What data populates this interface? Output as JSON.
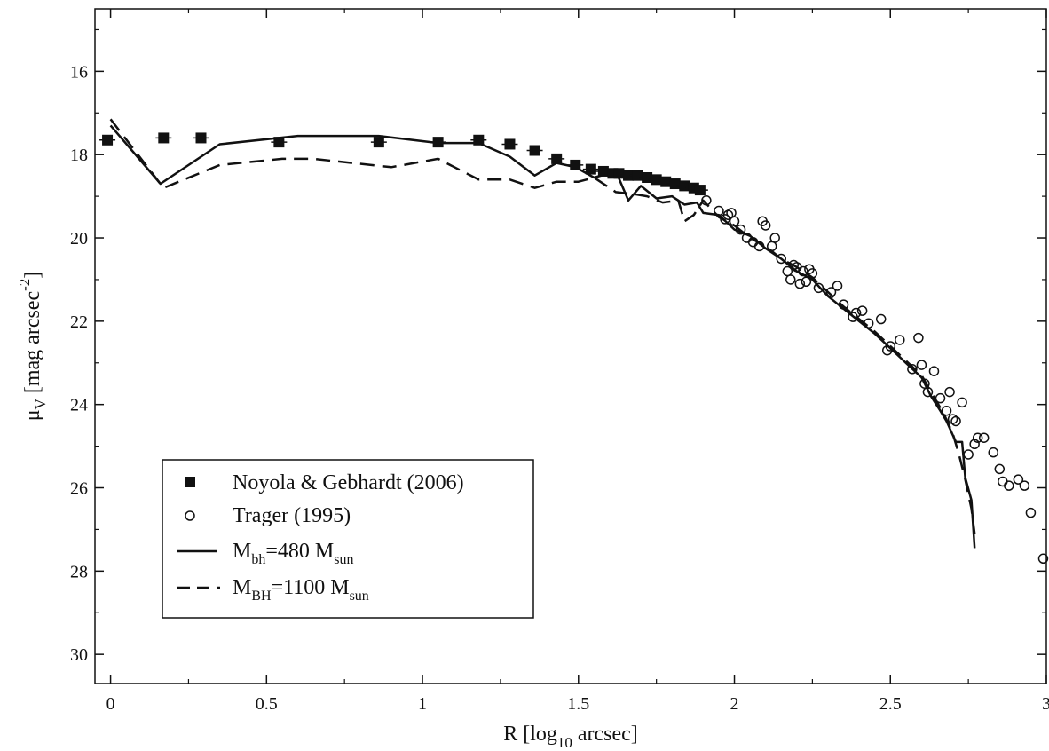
{
  "chart_data": {
    "type": "scatter",
    "title": "",
    "xlabel": {
      "main": "R [log",
      "sub": "10",
      "tail": " arcsec]"
    },
    "ylabel": {
      "mu": "μ",
      "sub": "V",
      "text": " [mag arcsec",
      "sup": "-2",
      "close": "]"
    },
    "xlim": [
      -0.05,
      3.0
    ],
    "ylim": [
      30.7,
      14.5
    ],
    "y_inverted": true,
    "x_ticks": [
      {
        "v": 0,
        "label": "0"
      },
      {
        "v": 0.5,
        "label": "0.5"
      },
      {
        "v": 1,
        "label": "1"
      },
      {
        "v": 1.5,
        "label": "1.5"
      },
      {
        "v": 2,
        "label": "2"
      },
      {
        "v": 2.5,
        "label": "2.5"
      },
      {
        "v": 3,
        "label": "3"
      }
    ],
    "y_ticks": [
      {
        "v": 16,
        "label": "16"
      },
      {
        "v": 18,
        "label": "18"
      },
      {
        "v": 20,
        "label": "20"
      },
      {
        "v": 22,
        "label": "22"
      },
      {
        "v": 24,
        "label": "24"
      },
      {
        "v": 26,
        "label": "26"
      },
      {
        "v": 28,
        "label": "28"
      },
      {
        "v": 30,
        "label": "30"
      }
    ],
    "legend": {
      "position": "bottom-left",
      "entries": [
        {
          "key": "noyola",
          "label": "Noyola & Gebhardt (2006)"
        },
        {
          "key": "trager",
          "label": "Trager (1995)"
        },
        {
          "key": "bh480",
          "main": "M",
          "sub": "bh",
          "mid": "=480 M",
          "sub2": "sun"
        },
        {
          "key": "bh1100",
          "main": "M",
          "sub": "BH",
          "mid": "=1100 M",
          "sub2": "sun"
        }
      ]
    },
    "series": [
      {
        "key": "noyola",
        "style": "filled-square",
        "points": [
          [
            -0.01,
            17.65
          ],
          [
            0.17,
            17.6
          ],
          [
            0.29,
            17.6
          ],
          [
            0.54,
            17.7
          ],
          [
            0.86,
            17.7
          ],
          [
            1.05,
            17.7
          ],
          [
            1.18,
            17.65
          ],
          [
            1.28,
            17.75
          ],
          [
            1.36,
            17.9
          ],
          [
            1.43,
            18.1
          ],
          [
            1.49,
            18.25
          ],
          [
            1.54,
            18.35
          ],
          [
            1.58,
            18.4
          ],
          [
            1.61,
            18.45
          ],
          [
            1.63,
            18.45
          ],
          [
            1.66,
            18.5
          ],
          [
            1.69,
            18.5
          ],
          [
            1.72,
            18.55
          ],
          [
            1.75,
            18.6
          ],
          [
            1.78,
            18.65
          ],
          [
            1.81,
            18.7
          ],
          [
            1.84,
            18.75
          ],
          [
            1.87,
            18.8
          ],
          [
            1.89,
            18.85
          ]
        ]
      },
      {
        "key": "trager",
        "style": "open-circle",
        "points": [
          [
            1.91,
            19.1
          ],
          [
            1.95,
            19.35
          ],
          [
            1.97,
            19.55
          ],
          [
            1.98,
            19.45
          ],
          [
            1.99,
            19.4
          ],
          [
            2.0,
            19.6
          ],
          [
            2.02,
            19.8
          ],
          [
            2.04,
            20.0
          ],
          [
            2.06,
            20.1
          ],
          [
            2.08,
            20.2
          ],
          [
            2.09,
            19.6
          ],
          [
            2.1,
            19.7
          ],
          [
            2.12,
            20.2
          ],
          [
            2.13,
            20.0
          ],
          [
            2.15,
            20.5
          ],
          [
            2.17,
            20.8
          ],
          [
            2.18,
            21.0
          ],
          [
            2.19,
            20.65
          ],
          [
            2.2,
            20.7
          ],
          [
            2.21,
            21.1
          ],
          [
            2.22,
            20.8
          ],
          [
            2.23,
            21.05
          ],
          [
            2.24,
            20.75
          ],
          [
            2.25,
            20.85
          ],
          [
            2.27,
            21.2
          ],
          [
            2.31,
            21.3
          ],
          [
            2.33,
            21.15
          ],
          [
            2.35,
            21.6
          ],
          [
            2.38,
            21.9
          ],
          [
            2.39,
            21.8
          ],
          [
            2.41,
            21.75
          ],
          [
            2.43,
            22.05
          ],
          [
            2.47,
            21.95
          ],
          [
            2.49,
            22.7
          ],
          [
            2.5,
            22.6
          ],
          [
            2.53,
            22.45
          ],
          [
            2.57,
            23.15
          ],
          [
            2.59,
            22.4
          ],
          [
            2.6,
            23.05
          ],
          [
            2.61,
            23.5
          ],
          [
            2.62,
            23.7
          ],
          [
            2.64,
            23.2
          ],
          [
            2.66,
            23.85
          ],
          [
            2.68,
            24.15
          ],
          [
            2.69,
            23.7
          ],
          [
            2.7,
            24.35
          ],
          [
            2.71,
            24.4
          ],
          [
            2.73,
            23.95
          ],
          [
            2.75,
            25.2
          ],
          [
            2.77,
            24.95
          ],
          [
            2.78,
            24.8
          ],
          [
            2.8,
            24.8
          ],
          [
            2.83,
            25.15
          ],
          [
            2.85,
            25.55
          ],
          [
            2.86,
            25.85
          ],
          [
            2.88,
            25.95
          ],
          [
            2.91,
            25.8
          ],
          [
            2.93,
            25.95
          ],
          [
            2.95,
            26.6
          ],
          [
            2.99,
            27.7
          ]
        ]
      },
      {
        "key": "bh480",
        "style": "solid",
        "points": [
          [
            0.0,
            17.3
          ],
          [
            0.16,
            18.7
          ],
          [
            0.35,
            17.75
          ],
          [
            0.6,
            17.55
          ],
          [
            0.86,
            17.55
          ],
          [
            1.05,
            17.72
          ],
          [
            1.18,
            17.72
          ],
          [
            1.28,
            18.05
          ],
          [
            1.36,
            18.5
          ],
          [
            1.43,
            18.2
          ],
          [
            1.49,
            18.3
          ],
          [
            1.55,
            18.55
          ],
          [
            1.62,
            18.4
          ],
          [
            1.66,
            19.1
          ],
          [
            1.7,
            18.75
          ],
          [
            1.75,
            19.05
          ],
          [
            1.8,
            19.0
          ],
          [
            1.84,
            19.2
          ],
          [
            1.88,
            19.15
          ],
          [
            1.9,
            19.4
          ],
          [
            1.95,
            19.45
          ],
          [
            2.0,
            19.8
          ],
          [
            2.05,
            19.95
          ],
          [
            2.1,
            20.25
          ],
          [
            2.15,
            20.5
          ],
          [
            2.2,
            20.8
          ],
          [
            2.25,
            21.0
          ],
          [
            2.3,
            21.4
          ],
          [
            2.35,
            21.7
          ],
          [
            2.4,
            22.0
          ],
          [
            2.45,
            22.3
          ],
          [
            2.5,
            22.65
          ],
          [
            2.55,
            23.0
          ],
          [
            2.6,
            23.35
          ],
          [
            2.63,
            23.8
          ],
          [
            2.66,
            24.15
          ],
          [
            2.68,
            24.4
          ],
          [
            2.71,
            24.9
          ],
          [
            2.73,
            24.9
          ],
          [
            2.74,
            25.75
          ],
          [
            2.76,
            26.3
          ],
          [
            2.77,
            27.45
          ]
        ]
      },
      {
        "key": "bh1100",
        "style": "dashed",
        "points": [
          [
            0.0,
            17.15
          ],
          [
            0.17,
            18.8
          ],
          [
            0.35,
            18.25
          ],
          [
            0.55,
            18.1
          ],
          [
            0.65,
            18.1
          ],
          [
            0.9,
            18.3
          ],
          [
            1.05,
            18.1
          ],
          [
            1.18,
            18.6
          ],
          [
            1.28,
            18.6
          ],
          [
            1.36,
            18.8
          ],
          [
            1.43,
            18.65
          ],
          [
            1.5,
            18.65
          ],
          [
            1.55,
            18.55
          ],
          [
            1.62,
            18.9
          ],
          [
            1.68,
            18.95
          ],
          [
            1.72,
            19.0
          ],
          [
            1.77,
            19.15
          ],
          [
            1.82,
            19.1
          ],
          [
            1.84,
            19.6
          ],
          [
            1.87,
            19.45
          ],
          [
            1.9,
            19.1
          ],
          [
            1.95,
            19.5
          ],
          [
            2.0,
            19.7
          ],
          [
            2.05,
            20.0
          ],
          [
            2.1,
            20.2
          ],
          [
            2.15,
            20.5
          ],
          [
            2.2,
            20.7
          ],
          [
            2.25,
            20.95
          ],
          [
            2.3,
            21.3
          ],
          [
            2.35,
            21.65
          ],
          [
            2.4,
            21.95
          ],
          [
            2.45,
            22.25
          ],
          [
            2.5,
            22.6
          ],
          [
            2.55,
            22.95
          ],
          [
            2.6,
            23.3
          ],
          [
            2.63,
            23.7
          ],
          [
            2.67,
            24.2
          ],
          [
            2.7,
            24.7
          ],
          [
            2.72,
            25.2
          ],
          [
            2.74,
            25.8
          ],
          [
            2.76,
            26.5
          ],
          [
            2.77,
            27.1
          ]
        ]
      }
    ]
  }
}
